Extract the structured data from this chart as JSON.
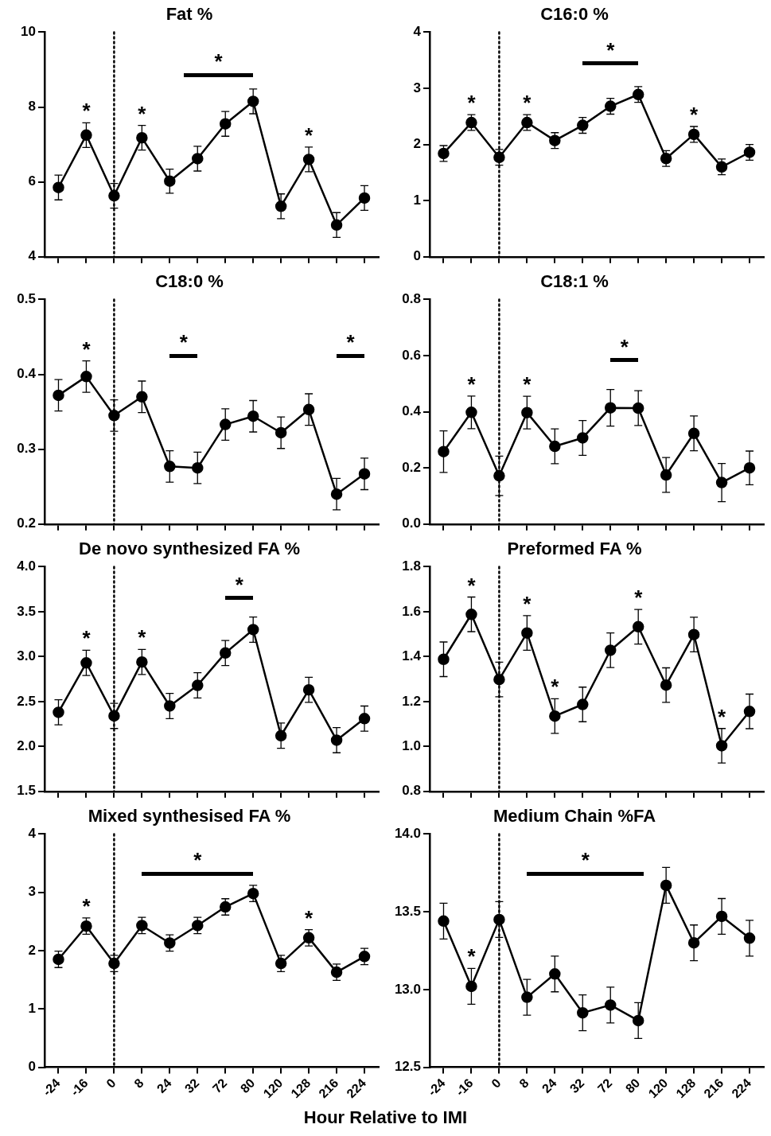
{
  "chart_data": [
    {
      "type": "line",
      "title": "Fat %",
      "categories": [
        "-24",
        "-16",
        "0",
        "8",
        "24",
        "32",
        "72",
        "80",
        "120",
        "128",
        "216",
        "224"
      ],
      "values": [
        5.85,
        7.25,
        5.63,
        7.18,
        6.02,
        6.62,
        7.55,
        8.15,
        5.35,
        6.6,
        4.85,
        5.57
      ],
      "errors": [
        0.33,
        0.33,
        0.33,
        0.33,
        0.32,
        0.33,
        0.33,
        0.33,
        0.33,
        0.33,
        0.33,
        0.33
      ],
      "color": "#000000",
      "marker": "circle",
      "ylim": [
        4,
        10
      ],
      "yticks": [
        4,
        6,
        8,
        10
      ],
      "tick_labels": "y",
      "ref_lines": [
        {
          "axis": "x",
          "value": "0",
          "line_style": "dotted"
        }
      ],
      "annotations": [
        "*",
        {
          "text": "*",
          "x": "-16",
          "y": 7.25
        },
        {
          "text": "*",
          "x": "8",
          "y": 7.18
        },
        {
          "text": "*",
          "x": "128",
          "y": 6.6
        }
      ]
    },
    {
      "type": "line",
      "title": "C16:0 %",
      "categories": [
        "-24",
        "-16",
        "0",
        "8",
        "24",
        "32",
        "72",
        "80",
        "120",
        "128",
        "216",
        "224"
      ],
      "values": [
        1.84,
        2.39,
        1.77,
        2.39,
        2.07,
        2.34,
        2.68,
        2.89,
        1.75,
        2.18,
        1.6,
        1.86
      ],
      "errors": [
        0.14,
        0.14,
        0.14,
        0.14,
        0.14,
        0.14,
        0.14,
        0.14,
        0.14,
        0.14,
        0.14,
        0.14
      ],
      "color": "#000000",
      "marker": "circle",
      "ylim": [
        0,
        4
      ],
      "yticks": [
        0,
        1,
        2,
        3,
        4
      ],
      "tick_labels": "y",
      "ref_lines": [
        {
          "axis": "x",
          "value": "0",
          "line_style": "dotted"
        }
      ],
      "annotations": [
        "*",
        {
          "text": "*",
          "x": "-16",
          "y": 2.39
        },
        {
          "text": "*",
          "x": "8",
          "y": 2.39
        },
        {
          "text": "*",
          "x": "128",
          "y": 2.18
        }
      ]
    },
    {
      "type": "line",
      "title": "C18:0 %",
      "categories": [
        "-24",
        "-16",
        "0",
        "8",
        "24",
        "32",
        "72",
        "80",
        "120",
        "128",
        "216",
        "224"
      ],
      "values": [
        0.372,
        0.397,
        0.345,
        0.37,
        0.277,
        0.275,
        0.333,
        0.344,
        0.322,
        0.353,
        0.24,
        0.267
      ],
      "errors": [
        0.021,
        0.021,
        0.021,
        0.021,
        0.021,
        0.021,
        0.021,
        0.021,
        0.021,
        0.021,
        0.021,
        0.021
      ],
      "color": "#000000",
      "marker": "circle",
      "ylim": [
        0.2,
        0.5
      ],
      "yticks": [
        {
          "value": 0.2,
          "label": "0.2"
        },
        {
          "value": 0.3,
          "label": "0.3"
        },
        {
          "value": 0.4,
          "label": "0.4"
        },
        {
          "value": 0.5,
          "label": "0.5"
        }
      ],
      "tick_labels": "y",
      "ref_lines": [
        {
          "axis": "x",
          "value": "0",
          "line_style": "dotted"
        }
      ],
      "annotations": [
        "*",
        "*",
        {
          "text": "*",
          "x": "-16",
          "y": 0.397
        }
      ]
    },
    {
      "type": "line",
      "title": "C18:1 %",
      "categories": [
        "-24",
        "-16",
        "0",
        "8",
        "24",
        "32",
        "72",
        "80",
        "120",
        "128",
        "216",
        "224"
      ],
      "values": [
        0.258,
        0.398,
        0.172,
        0.397,
        0.277,
        0.307,
        0.414,
        0.413,
        0.175,
        0.323,
        0.148,
        0.2
      ],
      "errors": [
        0.074,
        0.058,
        0.07,
        0.058,
        0.062,
        0.062,
        0.065,
        0.062,
        0.062,
        0.062,
        0.068,
        0.06
      ],
      "color": "#000000",
      "marker": "circle",
      "ylim": [
        0,
        0.8
      ],
      "yticks": [
        {
          "value": 0,
          "label": "0.0"
        },
        {
          "value": 0.2,
          "label": "0.2"
        },
        {
          "value": 0.4,
          "label": "0.4"
        },
        {
          "value": 0.6,
          "label": "0.6"
        },
        {
          "value": 0.8,
          "label": "0.8"
        }
      ],
      "tick_labels": "y",
      "ref_lines": [
        {
          "axis": "x",
          "value": "0",
          "line_style": "dotted"
        }
      ],
      "annotations": [
        "*",
        {
          "text": "*",
          "x": "-16",
          "y": 0.398
        },
        {
          "text": "*",
          "x": "8",
          "y": 0.397
        }
      ]
    },
    {
      "type": "line",
      "title": "De novo synthesized FA %",
      "categories": [
        "-24",
        "-16",
        "0",
        "8",
        "24",
        "32",
        "72",
        "80",
        "120",
        "128",
        "216",
        "224"
      ],
      "values": [
        2.38,
        2.93,
        2.34,
        2.94,
        2.45,
        2.68,
        3.04,
        3.3,
        2.12,
        2.63,
        2.07,
        2.31
      ],
      "errors": [
        0.14,
        0.14,
        0.14,
        0.14,
        0.14,
        0.14,
        0.14,
        0.14,
        0.14,
        0.14,
        0.14,
        0.14
      ],
      "color": "#000000",
      "marker": "circle",
      "ylim": [
        1.5,
        4
      ],
      "yticks": [
        {
          "value": 1.5,
          "label": "1.5"
        },
        {
          "value": 2,
          "label": "2.0"
        },
        {
          "value": 2.5,
          "label": "2.5"
        },
        {
          "value": 3,
          "label": "3.0"
        },
        {
          "value": 3.5,
          "label": "3.5"
        },
        {
          "value": 4,
          "label": "4.0"
        }
      ],
      "tick_labels": "y",
      "ref_lines": [
        {
          "axis": "x",
          "value": "0",
          "line_style": "dotted"
        }
      ],
      "annotations": [
        "*",
        {
          "text": "*",
          "x": "-16",
          "y": 2.93
        },
        {
          "text": "*",
          "x": "8",
          "y": 2.94
        }
      ]
    },
    {
      "type": "line",
      "title": "Preformed FA %",
      "categories": [
        "-24",
        "-16",
        "0",
        "8",
        "24",
        "32",
        "72",
        "80",
        "120",
        "128",
        "216",
        "224"
      ],
      "values": [
        1.388,
        1.588,
        1.298,
        1.505,
        1.135,
        1.187,
        1.428,
        1.533,
        1.273,
        1.498,
        1.003,
        1.156
      ],
      "errors": [
        0.077,
        0.077,
        0.077,
        0.077,
        0.077,
        0.077,
        0.077,
        0.077,
        0.077,
        0.077,
        0.077,
        0.077
      ],
      "color": "#000000",
      "marker": "circle",
      "ylim": [
        0.8,
        1.8
      ],
      "yticks": [
        {
          "value": 0.8,
          "label": "0.8"
        },
        {
          "value": 1,
          "label": "1.0"
        },
        {
          "value": 1.2,
          "label": "1.2"
        },
        {
          "value": 1.4,
          "label": "1.4"
        },
        {
          "value": 1.6,
          "label": "1.6"
        },
        {
          "value": 1.8,
          "label": "1.8"
        }
      ],
      "tick_labels": "y",
      "ref_lines": [
        {
          "axis": "x",
          "value": "0",
          "line_style": "dotted"
        }
      ],
      "annotations": [
        {
          "text": "*",
          "x": "-16",
          "y": 1.588
        },
        {
          "text": "*",
          "x": "8",
          "y": 1.505
        },
        {
          "text": "*",
          "x": "24",
          "y": 1.135
        },
        {
          "text": "*",
          "x": "80",
          "y": 1.533
        },
        {
          "text": "*",
          "x": "216",
          "y": 1.003
        }
      ]
    },
    {
      "type": "line",
      "title": "Mixed synthesised FA %",
      "categories": [
        "-24",
        "-16",
        "0",
        "8",
        "24",
        "32",
        "72",
        "80",
        "120",
        "128",
        "216",
        "224"
      ],
      "values": [
        1.85,
        2.42,
        1.78,
        2.43,
        2.13,
        2.43,
        2.75,
        2.98,
        1.78,
        2.22,
        1.63,
        1.9
      ],
      "errors": [
        0.14,
        0.14,
        0.14,
        0.14,
        0.14,
        0.14,
        0.14,
        0.14,
        0.14,
        0.14,
        0.14,
        0.14
      ],
      "color": "#000000",
      "marker": "circle",
      "ylim": [
        0,
        4
      ],
      "yticks": [
        0,
        1,
        2,
        3,
        4
      ],
      "ref_lines": [
        {
          "axis": "x",
          "value": "0",
          "line_style": "dotted"
        }
      ],
      "annotations": [
        "*",
        {
          "text": "*",
          "x": "-16",
          "y": 2.42
        },
        {
          "text": "*",
          "x": "128",
          "y": 2.22
        }
      ],
      "xlabel": "Hour Relative to IMI"
    },
    {
      "type": "line",
      "title": "Medium Chain %FA",
      "categories": [
        "-24",
        "-16",
        "0",
        "8",
        "24",
        "32",
        "72",
        "80",
        "120",
        "128",
        "216",
        "224"
      ],
      "values": [
        13.44,
        13.02,
        13.45,
        12.95,
        13.1,
        12.85,
        12.9,
        12.8,
        13.67,
        13.3,
        13.47,
        13.33
      ],
      "errors": [
        0.115,
        0.115,
        0.115,
        0.115,
        0.115,
        0.115,
        0.115,
        0.115,
        0.115,
        0.115,
        0.115,
        0.115
      ],
      "color": "#000000",
      "marker": "circle",
      "ylim": [
        12.5,
        14
      ],
      "yticks": [
        {
          "value": 12.5,
          "label": "12.5"
        },
        {
          "value": 13,
          "label": "13.0"
        },
        {
          "value": 13.5,
          "label": "13.5"
        },
        {
          "value": 14,
          "label": "14.0"
        }
      ],
      "ref_lines": [
        {
          "axis": "x",
          "value": "0",
          "line_style": "dotted"
        }
      ],
      "annotations": [
        "*",
        {
          "text": "*",
          "x": "-16",
          "y": 13.02
        }
      ]
    }
  ]
}
